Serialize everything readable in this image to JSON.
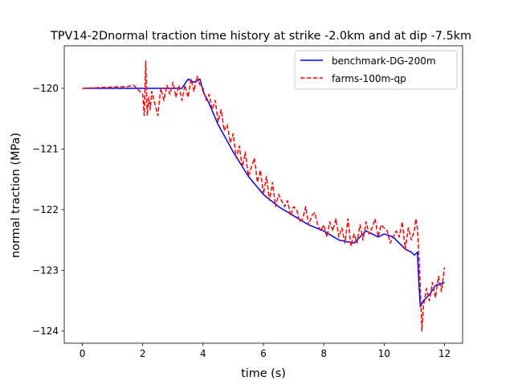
{
  "chart_data": {
    "type": "line",
    "title": "TPV14-2Dnormal traction time history at strike -2.0km and at dip -7.5km",
    "xlabel": "time (s)",
    "ylabel": "normal traction (MPa)",
    "xlim": [
      -0.6,
      12.6
    ],
    "ylim": [
      -124.2,
      -119.3
    ],
    "xticks": [
      0,
      2,
      4,
      6,
      8,
      10,
      12
    ],
    "xtick_labels": [
      "0",
      "2",
      "4",
      "6",
      "8",
      "10",
      "12"
    ],
    "yticks": [
      -120,
      -121,
      -122,
      -123,
      -124
    ],
    "ytick_labels": [
      "−120",
      "−121",
      "−122",
      "−123",
      "−124"
    ],
    "grid": false,
    "legend_position": "top-right",
    "series": [
      {
        "name": "benchmark-DG-200m",
        "color": "#0000ff",
        "style": "solid",
        "x": [
          0,
          1.0,
          2.0,
          2.5,
          3.0,
          3.3,
          3.5,
          3.7,
          3.9,
          4.0,
          4.2,
          4.5,
          5.0,
          5.5,
          6.0,
          6.5,
          7.0,
          7.5,
          8.0,
          8.5,
          9.0,
          9.2,
          9.4,
          9.6,
          9.8,
          10.0,
          10.3,
          10.5,
          10.7,
          10.9,
          11.0,
          11.1,
          11.15,
          11.2,
          11.3,
          11.5,
          11.7,
          12.0
        ],
        "y": [
          -120.0,
          -120.0,
          -120.0,
          -120.0,
          -120.0,
          -120.0,
          -119.85,
          -119.9,
          -119.85,
          -120.05,
          -120.25,
          -120.6,
          -121.05,
          -121.45,
          -121.75,
          -121.95,
          -122.1,
          -122.25,
          -122.35,
          -122.5,
          -122.55,
          -122.45,
          -122.35,
          -122.4,
          -122.45,
          -122.4,
          -122.45,
          -122.55,
          -122.65,
          -122.7,
          -122.75,
          -122.7,
          -123.2,
          -123.6,
          -123.5,
          -123.4,
          -123.25,
          -123.2
        ]
      },
      {
        "name": "farms-100m-qp",
        "color": "#ff0000",
        "style": "dashed",
        "x": [
          0,
          1.5,
          1.7,
          1.9,
          2.0,
          2.05,
          2.1,
          2.15,
          2.2,
          2.25,
          2.3,
          2.4,
          2.5,
          2.6,
          2.7,
          2.8,
          2.9,
          3.0,
          3.1,
          3.2,
          3.3,
          3.4,
          3.5,
          3.6,
          3.7,
          3.8,
          3.9,
          4.0,
          4.1,
          4.2,
          4.3,
          4.4,
          4.5,
          4.6,
          4.7,
          4.8,
          4.9,
          5.0,
          5.1,
          5.2,
          5.3,
          5.4,
          5.5,
          5.6,
          5.7,
          5.8,
          5.9,
          6.0,
          6.1,
          6.2,
          6.3,
          6.4,
          6.5,
          6.6,
          6.7,
          6.8,
          6.9,
          7.0,
          7.1,
          7.2,
          7.3,
          7.4,
          7.5,
          7.6,
          7.7,
          7.8,
          7.9,
          8.0,
          8.1,
          8.2,
          8.3,
          8.4,
          8.5,
          8.6,
          8.7,
          8.8,
          8.9,
          9.0,
          9.1,
          9.2,
          9.3,
          9.4,
          9.5,
          9.6,
          9.7,
          9.8,
          9.9,
          10.0,
          10.1,
          10.2,
          10.3,
          10.4,
          10.5,
          10.6,
          10.7,
          10.8,
          10.9,
          11.0,
          11.05,
          11.1,
          11.15,
          11.2,
          11.25,
          11.3,
          11.4,
          11.5,
          11.6,
          11.7,
          11.8,
          11.9,
          12.0
        ],
        "y": [
          -120.0,
          -119.97,
          -119.95,
          -120.05,
          -120.1,
          -120.45,
          -119.55,
          -120.45,
          -120.15,
          -120.35,
          -120.05,
          -120.25,
          -120.45,
          -120.0,
          -120.2,
          -119.95,
          -120.1,
          -119.9,
          -120.15,
          -119.95,
          -120.2,
          -119.95,
          -120.15,
          -119.85,
          -120.05,
          -119.8,
          -119.95,
          -120.0,
          -120.2,
          -120.1,
          -120.35,
          -120.2,
          -120.55,
          -120.35,
          -120.7,
          -120.6,
          -120.9,
          -120.75,
          -121.15,
          -120.95,
          -121.3,
          -121.05,
          -121.45,
          -121.3,
          -121.15,
          -121.55,
          -121.35,
          -121.75,
          -121.45,
          -121.85,
          -121.55,
          -121.95,
          -121.75,
          -121.85,
          -121.95,
          -121.85,
          -122.1,
          -121.95,
          -122.0,
          -122.2,
          -122.15,
          -121.95,
          -122.25,
          -122.1,
          -122.05,
          -122.25,
          -122.35,
          -122.25,
          -122.45,
          -122.2,
          -122.35,
          -122.15,
          -122.45,
          -122.3,
          -122.55,
          -122.15,
          -122.6,
          -122.4,
          -122.55,
          -122.25,
          -122.5,
          -122.2,
          -122.4,
          -122.3,
          -122.15,
          -122.45,
          -122.25,
          -122.3,
          -122.35,
          -122.55,
          -122.45,
          -122.35,
          -122.45,
          -122.2,
          -122.65,
          -122.3,
          -122.5,
          -122.35,
          -122.15,
          -122.3,
          -122.75,
          -123.3,
          -124.0,
          -123.6,
          -123.3,
          -123.5,
          -123.2,
          -123.45,
          -123.1,
          -123.35,
          -122.95
        ]
      }
    ]
  }
}
